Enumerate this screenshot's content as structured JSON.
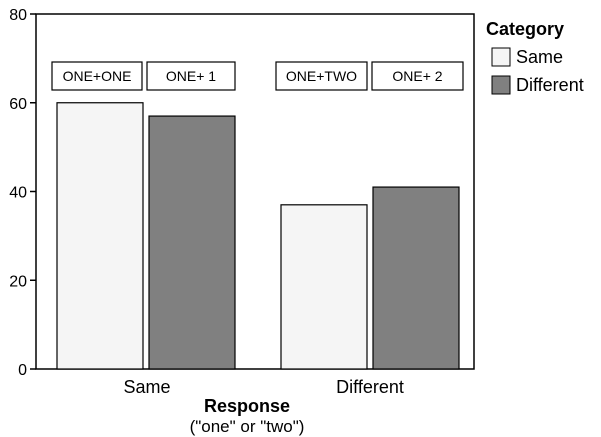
{
  "chart_data": {
    "type": "bar",
    "categories": [
      "Same",
      "Different"
    ],
    "series": [
      {
        "name": "Same",
        "color": "#f5f5f5",
        "values": [
          60,
          37
        ]
      },
      {
        "name": "Different",
        "color": "#808080",
        "values": [
          57,
          41
        ]
      }
    ],
    "annotations": [
      [
        "ONE+ONE",
        "ONE+ 1"
      ],
      [
        "ONE+TWO",
        "ONE+ 2"
      ]
    ],
    "xlabel": "Response",
    "xlabel_sub": "(\"one\" or \"two\")",
    "ylabel": "",
    "ylim": [
      0,
      80
    ],
    "yticks": [
      0,
      20,
      40,
      60,
      80
    ],
    "legend": {
      "title": "Category",
      "position": "right"
    },
    "grid": false
  }
}
